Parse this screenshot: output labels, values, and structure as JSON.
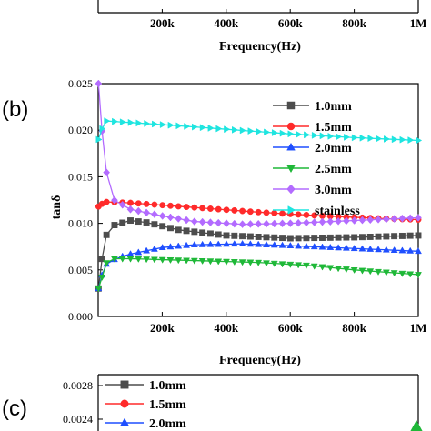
{
  "top_panel": {
    "xticks": [
      "200k",
      "400k",
      "600k",
      "800k",
      "1M"
    ],
    "xlabel": "Frequency(Hz)"
  },
  "panel_b_label": "(b)",
  "panel_c_label": "(c)",
  "chart_data": [
    {
      "type": "line",
      "panel": "b",
      "xlabel": "Frequency(Hz)",
      "ylabel": "tanδ",
      "xlim": [
        0,
        1000000
      ],
      "ylim": [
        0,
        0.025
      ],
      "xticks": [
        {
          "value": 200000,
          "label": "200k"
        },
        {
          "value": 400000,
          "label": "400k"
        },
        {
          "value": 600000,
          "label": "600k"
        },
        {
          "value": 800000,
          "label": "800k"
        },
        {
          "value": 1000000,
          "label": "1M"
        }
      ],
      "yticks": [
        {
          "value": 0,
          "label": "0.000"
        },
        {
          "value": 0.005,
          "label": "0.005"
        },
        {
          "value": 0.01,
          "label": "0.010"
        },
        {
          "value": 0.015,
          "label": "0.015"
        },
        {
          "value": 0.02,
          "label": "0.020"
        },
        {
          "value": 0.025,
          "label": "0.025"
        }
      ],
      "legend_position": "top-right",
      "series": [
        {
          "name": "1.0mm",
          "color": "#4d4d4d",
          "marker": "square",
          "anchors": [
            [
              1000,
              0.003
            ],
            [
              20000,
              0.0085
            ],
            [
              50000,
              0.0098
            ],
            [
              100000,
              0.0103
            ],
            [
              150000,
              0.0101
            ],
            [
              250000,
              0.0093
            ],
            [
              400000,
              0.0087
            ],
            [
              600000,
              0.0084
            ],
            [
              800000,
              0.0085
            ],
            [
              1000000,
              0.0087
            ]
          ]
        },
        {
          "name": "1.5mm",
          "color": "#ff2a2a",
          "marker": "circle",
          "anchors": [
            [
              1000,
              0.0118
            ],
            [
              20000,
              0.0123
            ],
            [
              100000,
              0.0122
            ],
            [
              300000,
              0.0117
            ],
            [
              500000,
              0.0112
            ],
            [
              700000,
              0.0108
            ],
            [
              900000,
              0.0105
            ],
            [
              1000000,
              0.0104
            ]
          ]
        },
        {
          "name": "2.0mm",
          "color": "#1f4fff",
          "marker": "triangle-up",
          "anchors": [
            [
              1000,
              0.003
            ],
            [
              20000,
              0.0055
            ],
            [
              60000,
              0.0063
            ],
            [
              100000,
              0.0067
            ],
            [
              200000,
              0.0074
            ],
            [
              300000,
              0.0077
            ],
            [
              450000,
              0.0078
            ],
            [
              600000,
              0.0076
            ],
            [
              800000,
              0.0073
            ],
            [
              1000000,
              0.007
            ]
          ]
        },
        {
          "name": "2.5mm",
          "color": "#1fb838",
          "marker": "triangle-down",
          "anchors": [
            [
              1000,
              0.003
            ],
            [
              30000,
              0.0062
            ],
            [
              100000,
              0.0062
            ],
            [
              300000,
              0.006
            ],
            [
              500000,
              0.0058
            ],
            [
              650000,
              0.0055
            ],
            [
              800000,
              0.005
            ],
            [
              1000000,
              0.0045
            ]
          ]
        },
        {
          "name": "3.0mm",
          "color": "#b36bff",
          "marker": "diamond",
          "anchors": [
            [
              1000,
              0.025
            ],
            [
              20000,
              0.0162
            ],
            [
              50000,
              0.0125
            ],
            [
              100000,
              0.0115
            ],
            [
              200000,
              0.0108
            ],
            [
              300000,
              0.0102
            ],
            [
              450000,
              0.0099
            ],
            [
              600000,
              0.01
            ],
            [
              800000,
              0.0103
            ],
            [
              1000000,
              0.0106
            ]
          ]
        },
        {
          "name": "stainless",
          "color": "#1fe5e0",
          "marker": "triangle-right",
          "anchors": [
            [
              1000,
              0.019
            ],
            [
              20000,
              0.021
            ],
            [
              200000,
              0.0206
            ],
            [
              400000,
              0.0201
            ],
            [
              600000,
              0.0196
            ],
            [
              800000,
              0.0192
            ],
            [
              1000000,
              0.0189
            ]
          ]
        }
      ]
    },
    {
      "type": "line",
      "panel": "c",
      "yticks": [
        {
          "value": 0.0028,
          "label": "0.0028"
        },
        {
          "value": 0.0024,
          "label": "0.0024"
        }
      ],
      "legend": [
        {
          "name": "1.0mm",
          "color": "#4d4d4d",
          "marker": "square"
        },
        {
          "name": "1.5mm",
          "color": "#ff2a2a",
          "marker": "circle"
        },
        {
          "name": "2.0mm",
          "color": "#1f4fff",
          "marker": "triangle-up"
        }
      ]
    }
  ]
}
